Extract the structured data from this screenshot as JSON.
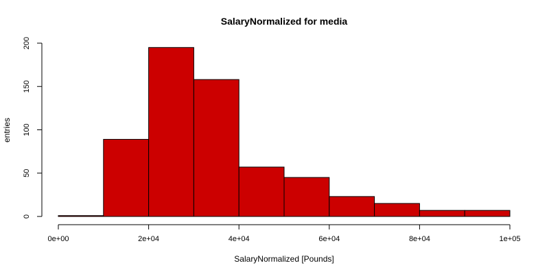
{
  "chart_data": {
    "type": "bar",
    "title": "SalaryNormalized for media",
    "xlabel": "SalaryNormalized [Pounds]",
    "ylabel": "entries",
    "bin_edges": [
      0,
      10000,
      20000,
      30000,
      40000,
      50000,
      60000,
      70000,
      80000,
      90000,
      100000
    ],
    "values": [
      1,
      89,
      195,
      158,
      57,
      45,
      23,
      15,
      7,
      7
    ],
    "xlim": [
      0,
      100000
    ],
    "ylim": [
      0,
      200
    ],
    "x_ticks": [
      {
        "value": 0,
        "label": "0e+00"
      },
      {
        "value": 20000,
        "label": "2e+04"
      },
      {
        "value": 40000,
        "label": "4e+04"
      },
      {
        "value": 60000,
        "label": "6e+04"
      },
      {
        "value": 80000,
        "label": "8e+04"
      },
      {
        "value": 100000,
        "label": "1e+05"
      }
    ],
    "y_ticks": [
      {
        "value": 0,
        "label": "0"
      },
      {
        "value": 50,
        "label": "50"
      },
      {
        "value": 100,
        "label": "100"
      },
      {
        "value": 150,
        "label": "150"
      },
      {
        "value": 200,
        "label": "200"
      }
    ],
    "grid": false,
    "colors": {
      "bar_fill": "#cc0000",
      "bar_stroke": "#000000",
      "axis": "#000000"
    }
  }
}
